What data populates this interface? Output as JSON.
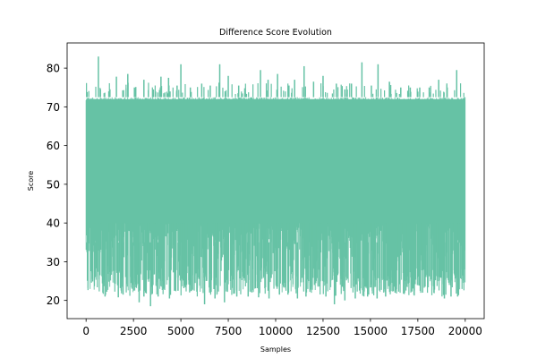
{
  "chart_data": {
    "type": "line",
    "title": "Difference Score Evolution",
    "xlabel": "Samples",
    "ylabel": "Score",
    "xlim": [
      -1000,
      21000
    ],
    "ylim": [
      15.3,
      86.5
    ],
    "xticks": [
      0,
      2500,
      5000,
      7500,
      10000,
      12500,
      15000,
      17500,
      20000
    ],
    "yticks": [
      20,
      30,
      40,
      50,
      60,
      70,
      80
    ],
    "grid": false,
    "legend": "none",
    "series_color": "#66c2a5",
    "series": [
      {
        "n_points": 20000,
        "upper_envelope_typical": 72.5,
        "lower_envelope_typical": 24,
        "peaks": [
          {
            "x": 650,
            "y": 83
          },
          {
            "x": 1200,
            "y": 74
          },
          {
            "x": 1600,
            "y": 77.8
          },
          {
            "x": 2200,
            "y": 78.5
          },
          {
            "x": 2550,
            "y": 75
          },
          {
            "x": 3050,
            "y": 77
          },
          {
            "x": 3550,
            "y": 74.5
          },
          {
            "x": 3950,
            "y": 77.8
          },
          {
            "x": 4350,
            "y": 77.5
          },
          {
            "x": 4800,
            "y": 75.5
          },
          {
            "x": 5000,
            "y": 81
          },
          {
            "x": 5500,
            "y": 75
          },
          {
            "x": 6100,
            "y": 76
          },
          {
            "x": 6550,
            "y": 75.5
          },
          {
            "x": 7050,
            "y": 81
          },
          {
            "x": 7500,
            "y": 78
          },
          {
            "x": 8050,
            "y": 75.5
          },
          {
            "x": 8400,
            "y": 73.5
          },
          {
            "x": 9200,
            "y": 79.5
          },
          {
            "x": 9600,
            "y": 77
          },
          {
            "x": 10100,
            "y": 78.5
          },
          {
            "x": 10700,
            "y": 75.5
          },
          {
            "x": 11000,
            "y": 77
          },
          {
            "x": 11500,
            "y": 80.5
          },
          {
            "x": 12000,
            "y": 76.5
          },
          {
            "x": 12500,
            "y": 78
          },
          {
            "x": 13200,
            "y": 76
          },
          {
            "x": 13650,
            "y": 74.5
          },
          {
            "x": 14000,
            "y": 76
          },
          {
            "x": 14550,
            "y": 81.5
          },
          {
            "x": 15050,
            "y": 75.5
          },
          {
            "x": 15400,
            "y": 81
          },
          {
            "x": 16000,
            "y": 76.5
          },
          {
            "x": 16600,
            "y": 75
          },
          {
            "x": 17100,
            "y": 75
          },
          {
            "x": 17600,
            "y": 75
          },
          {
            "x": 18100,
            "y": 75
          },
          {
            "x": 18600,
            "y": 77
          },
          {
            "x": 19050,
            "y": 75
          },
          {
            "x": 19550,
            "y": 79.5
          }
        ],
        "troughs": [
          {
            "x": 50,
            "y": 32.5
          },
          {
            "x": 500,
            "y": 26
          },
          {
            "x": 1000,
            "y": 21
          },
          {
            "x": 1700,
            "y": 20.8
          },
          {
            "x": 1950,
            "y": 21.5
          },
          {
            "x": 2450,
            "y": 24
          },
          {
            "x": 2800,
            "y": 19.5
          },
          {
            "x": 3050,
            "y": 21
          },
          {
            "x": 3400,
            "y": 18.5
          },
          {
            "x": 3800,
            "y": 21
          },
          {
            "x": 4400,
            "y": 20.5
          },
          {
            "x": 4850,
            "y": 22.5
          },
          {
            "x": 5300,
            "y": 24
          },
          {
            "x": 5750,
            "y": 24.5
          },
          {
            "x": 6250,
            "y": 19
          },
          {
            "x": 6800,
            "y": 20.5
          },
          {
            "x": 7300,
            "y": 19.5
          },
          {
            "x": 7950,
            "y": 21
          },
          {
            "x": 8550,
            "y": 21
          },
          {
            "x": 9100,
            "y": 20.8
          },
          {
            "x": 9650,
            "y": 20.5
          },
          {
            "x": 10200,
            "y": 21.5
          },
          {
            "x": 10650,
            "y": 21.5
          },
          {
            "x": 11150,
            "y": 20.5
          },
          {
            "x": 11600,
            "y": 21
          },
          {
            "x": 12050,
            "y": 24
          },
          {
            "x": 12650,
            "y": 21
          },
          {
            "x": 13100,
            "y": 19
          },
          {
            "x": 13650,
            "y": 20
          },
          {
            "x": 14200,
            "y": 20.5
          },
          {
            "x": 14850,
            "y": 21
          },
          {
            "x": 15350,
            "y": 20.5
          },
          {
            "x": 15800,
            "y": 21
          },
          {
            "x": 16300,
            "y": 22
          },
          {
            "x": 16800,
            "y": 22
          },
          {
            "x": 17300,
            "y": 22.5
          },
          {
            "x": 17750,
            "y": 22
          },
          {
            "x": 18350,
            "y": 22
          },
          {
            "x": 18900,
            "y": 20.5
          },
          {
            "x": 19250,
            "y": 21
          },
          {
            "x": 19600,
            "y": 21
          }
        ]
      }
    ]
  }
}
